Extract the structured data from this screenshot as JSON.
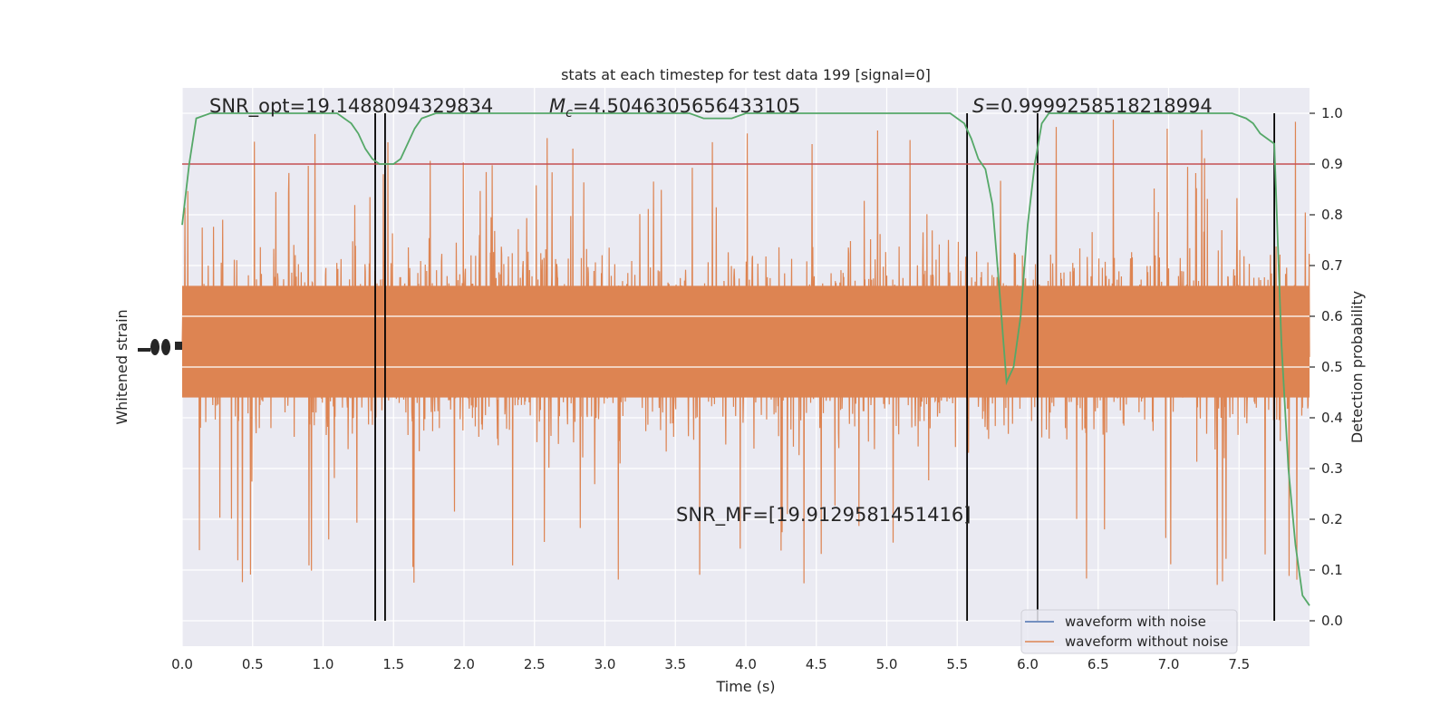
{
  "chart_data": {
    "type": "line",
    "title": "stats at each timestep for test data 199 [signal=0]",
    "xlabel": "Time (s)",
    "ylabel_left": "Whitened strain",
    "ylabel_right": "Detection probability",
    "xlim": [
      0.0,
      8.0
    ],
    "ylim_right": [
      -0.05,
      1.05
    ],
    "x_ticks": [
      "0.0",
      "0.5",
      "1.0",
      "1.5",
      "2.0",
      "2.5",
      "3.0",
      "3.5",
      "4.0",
      "4.5",
      "5.0",
      "5.5",
      "6.0",
      "6.5",
      "7.0",
      "7.5"
    ],
    "x_tick_values": [
      0.0,
      0.5,
      1.0,
      1.5,
      2.0,
      2.5,
      3.0,
      3.5,
      4.0,
      4.5,
      5.0,
      5.5,
      6.0,
      6.5,
      7.0,
      7.5
    ],
    "y_ticks_right": [
      "0.0",
      "0.1",
      "0.2",
      "0.3",
      "0.4",
      "0.5",
      "0.6",
      "0.7",
      "0.8",
      "0.9",
      "1.0"
    ],
    "y_tick_values_right": [
      0.0,
      0.1,
      0.2,
      0.3,
      0.4,
      0.5,
      0.6,
      0.7,
      0.8,
      0.9,
      1.0
    ],
    "threshold": 0.9,
    "vertical_lines": [
      1.37,
      1.44,
      5.57,
      6.07,
      7.75
    ],
    "strain_envelope": {
      "x": [
        0.0,
        0.5,
        1.0,
        1.5,
        2.0,
        2.5,
        3.0,
        3.5,
        4.0,
        4.5,
        5.0,
        5.5,
        6.0,
        6.5,
        7.0,
        7.5,
        8.0
      ],
      "typical_upper": [
        0.76,
        0.79,
        0.78,
        0.8,
        0.79,
        0.8,
        0.79,
        0.78,
        0.79,
        0.78,
        0.79,
        0.8,
        0.78,
        0.79,
        0.78,
        0.79,
        0.78
      ],
      "typical_lower": [
        0.33,
        0.31,
        0.32,
        0.3,
        0.31,
        0.3,
        0.31,
        0.32,
        0.31,
        0.3,
        0.31,
        0.3,
        0.32,
        0.31,
        0.32,
        0.31,
        0.33
      ],
      "max": 1.0,
      "min": 0.0
    },
    "series": [
      {
        "name": "waveform with noise",
        "color": "#4c72b0",
        "values": []
      },
      {
        "name": "waveform without noise",
        "color": "#dd8452",
        "values": []
      },
      {
        "color": "#55a868",
        "x": [
          0.0,
          0.05,
          0.1,
          0.2,
          0.3,
          0.5,
          0.8,
          1.0,
          1.1,
          1.15,
          1.2,
          1.25,
          1.3,
          1.35,
          1.4,
          1.45,
          1.5,
          1.55,
          1.6,
          1.65,
          1.7,
          1.8,
          1.9,
          2.0,
          2.1,
          2.3,
          2.6,
          3.0,
          3.3,
          3.5,
          3.6,
          3.7,
          3.8,
          3.9,
          4.0,
          4.2,
          4.5,
          5.0,
          5.3,
          5.45,
          5.5,
          5.55,
          5.6,
          5.65,
          5.7,
          5.75,
          5.8,
          5.85,
          5.9,
          5.95,
          6.0,
          6.05,
          6.1,
          6.15,
          6.2,
          6.3,
          6.5,
          7.0,
          7.3,
          7.45,
          7.55,
          7.6,
          7.65,
          7.7,
          7.75,
          7.8,
          7.85,
          7.9,
          7.95,
          8.0
        ],
        "values": [
          0.78,
          0.9,
          0.99,
          1.0,
          1.0,
          1.0,
          1.0,
          1.0,
          1.0,
          0.99,
          0.98,
          0.96,
          0.93,
          0.91,
          0.9,
          0.9,
          0.9,
          0.91,
          0.94,
          0.97,
          0.99,
          1.0,
          1.0,
          1.0,
          1.0,
          1.0,
          1.0,
          1.0,
          1.0,
          1.0,
          1.0,
          0.99,
          0.99,
          0.99,
          1.0,
          1.0,
          1.0,
          1.0,
          1.0,
          1.0,
          0.99,
          0.98,
          0.95,
          0.91,
          0.89,
          0.82,
          0.65,
          0.47,
          0.5,
          0.6,
          0.78,
          0.9,
          0.98,
          1.0,
          1.0,
          1.0,
          1.0,
          1.0,
          1.0,
          1.0,
          0.99,
          0.98,
          0.96,
          0.95,
          0.94,
          0.55,
          0.3,
          0.15,
          0.05,
          0.03
        ]
      }
    ],
    "legend": {
      "position": "lower-right",
      "entries": [
        "waveform with noise",
        "waveform without noise"
      ]
    },
    "annotations": [
      {
        "text": "SNR_opt=19.1488094329834"
      },
      {
        "text": "=4.5046305656433105",
        "prefix": "M",
        "subscript": "c"
      },
      {
        "text": "=0.9999258518218994",
        "prefix": "S"
      },
      {
        "text": "SNR_MF=[19.9129581451416]"
      }
    ],
    "colors": {
      "background": "#eaeaf2",
      "grid": "#ffffff",
      "noise": "#dd8452",
      "prob": "#55a868",
      "threshold": "#c44e52",
      "vline": "#000000"
    }
  }
}
